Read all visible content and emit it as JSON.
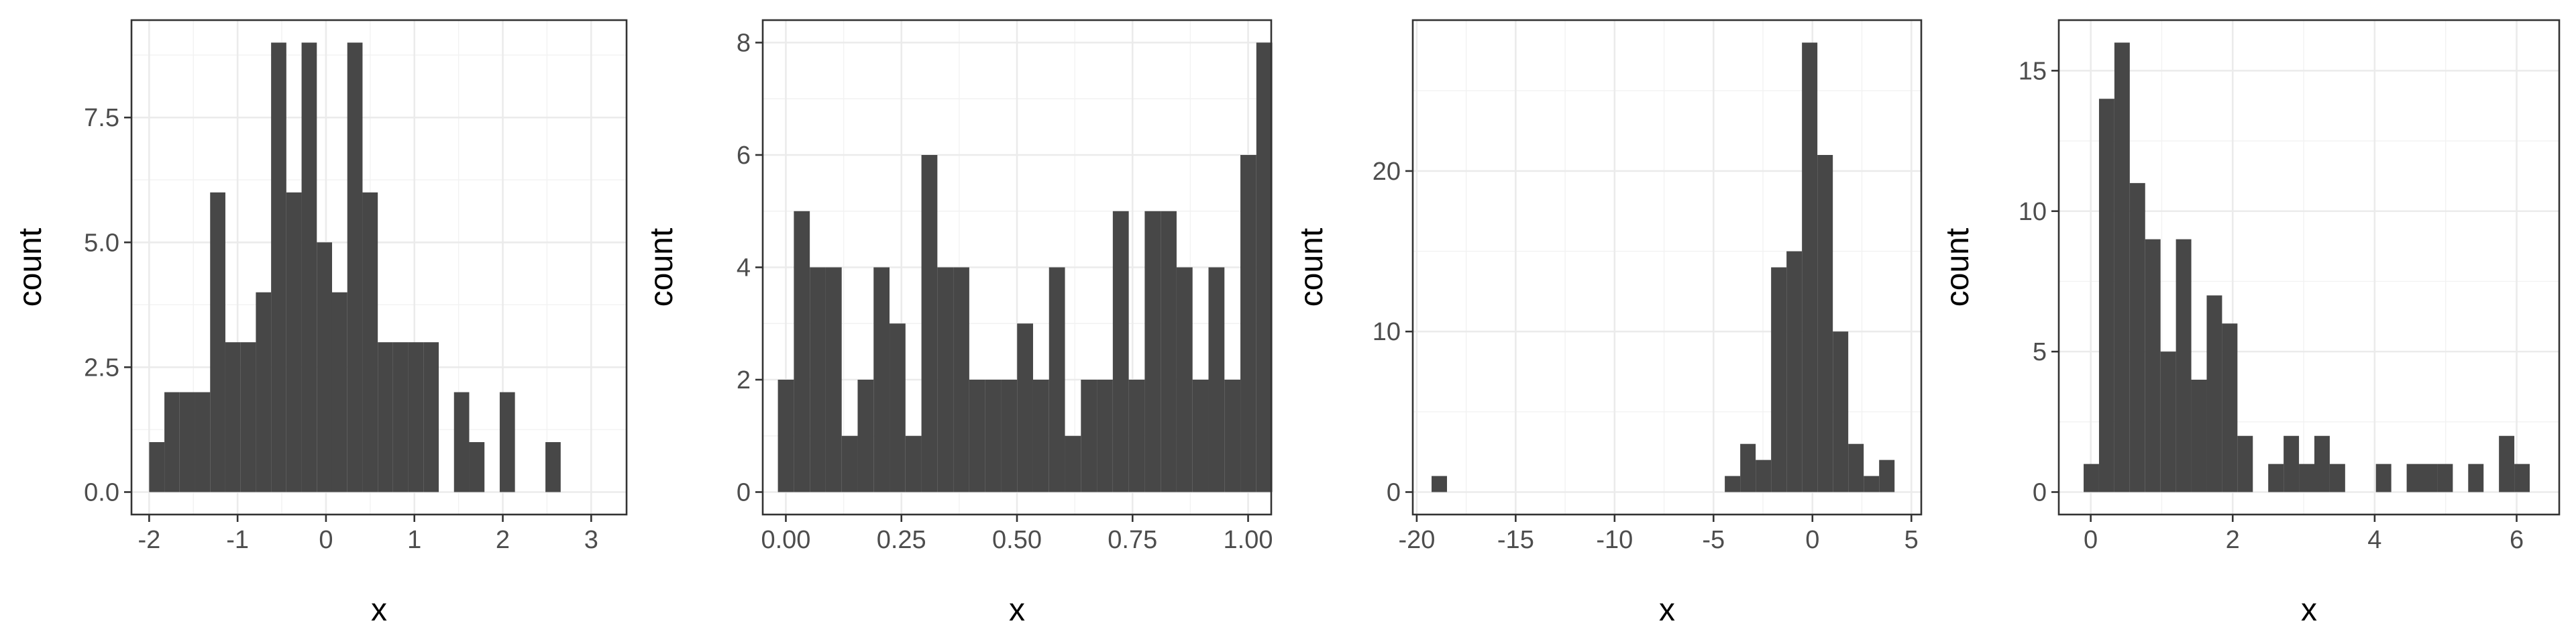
{
  "chart_data": [
    {
      "type": "bar",
      "xlabel": "x",
      "ylabel": "count",
      "xlim": [
        -2.2,
        3.4
      ],
      "ylim": [
        -0.45,
        9.45
      ],
      "x_ticks": [
        -2,
        -1,
        0,
        1,
        2,
        3
      ],
      "x_tick_labels": [
        "-2",
        "-1",
        "0",
        "1",
        "2",
        "3"
      ],
      "y_ticks": [
        0,
        2.5,
        5,
        7.5
      ],
      "y_tick_labels": [
        "0.0",
        "2.5",
        "5.0",
        "7.5"
      ],
      "bin_start": -2.0,
      "bin_width": 0.1724,
      "counts": [
        1,
        2,
        2,
        2,
        6,
        3,
        3,
        4,
        9,
        6,
        9,
        5,
        4,
        9,
        6,
        3,
        3,
        3,
        3,
        0,
        2,
        1,
        0,
        2,
        0,
        0,
        1
      ],
      "bar_color": "#474747",
      "grid": true
    },
    {
      "type": "bar",
      "xlabel": "x",
      "ylabel": "count",
      "xlim": [
        -0.05,
        1.05
      ],
      "ylim": [
        -0.4,
        8.4
      ],
      "x_ticks": [
        0,
        0.25,
        0.5,
        0.75,
        1.0
      ],
      "x_tick_labels": [
        "0.00",
        "0.25",
        "0.50",
        "0.75",
        "1.00"
      ],
      "y_ticks": [
        0,
        2,
        4,
        6,
        8
      ],
      "y_tick_labels": [
        "0",
        "2",
        "4",
        "6",
        "8"
      ],
      "bin_start": -0.0172,
      "bin_width": 0.0345,
      "counts": [
        2,
        5,
        4,
        4,
        1,
        2,
        4,
        3,
        1,
        6,
        4,
        4,
        2,
        2,
        2,
        3,
        2,
        4,
        1,
        2,
        2,
        5,
        2,
        5,
        5,
        4,
        2,
        4,
        2,
        6,
        8
      ],
      "bar_color": "#474747",
      "grid": true
    },
    {
      "type": "bar",
      "xlabel": "x",
      "ylabel": "count",
      "xlim": [
        -20.2,
        5.5
      ],
      "ylim": [
        -1.4,
        29.4
      ],
      "x_ticks": [
        -20,
        -15,
        -10,
        -5,
        0,
        5
      ],
      "x_tick_labels": [
        "-20",
        "-15",
        "-10",
        "-5",
        "0",
        "5"
      ],
      "y_ticks": [
        0,
        10,
        20
      ],
      "y_tick_labels": [
        "0",
        "10",
        "20"
      ],
      "bin_start": -19.25,
      "bin_width": 0.78,
      "counts": [
        1,
        0,
        0,
        0,
        0,
        0,
        0,
        0,
        0,
        0,
        0,
        0,
        0,
        0,
        0,
        0,
        0,
        0,
        0,
        1,
        3,
        2,
        14,
        15,
        28,
        21,
        10,
        3,
        1,
        2
      ],
      "bar_color": "#474747",
      "grid": true
    },
    {
      "type": "bar",
      "xlabel": "x",
      "ylabel": "count",
      "xlim": [
        -0.45,
        6.6
      ],
      "ylim": [
        -0.8,
        16.8
      ],
      "x_ticks": [
        0,
        2,
        4,
        6
      ],
      "x_tick_labels": [
        "0",
        "2",
        "4",
        "6"
      ],
      "y_ticks": [
        0,
        5,
        10,
        15
      ],
      "y_tick_labels": [
        "0",
        "5",
        "10",
        "15"
      ],
      "bin_start": -0.1,
      "bin_width": 0.2167,
      "counts": [
        1,
        14,
        16,
        11,
        9,
        5,
        9,
        4,
        7,
        6,
        2,
        0,
        1,
        2,
        1,
        2,
        1,
        0,
        0,
        1,
        0,
        1,
        1,
        1,
        0,
        1,
        0,
        2,
        1
      ],
      "bar_color": "#474747",
      "grid": true
    }
  ]
}
